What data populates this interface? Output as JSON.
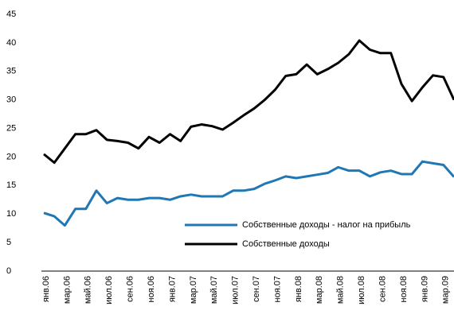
{
  "chart_data": {
    "type": "line",
    "categories": [
      "янв.06",
      null,
      "мар.06",
      null,
      "май.06",
      null,
      "июл.06",
      null,
      "сен.06",
      null,
      "ноя.06",
      null,
      "янв.07",
      null,
      "мар.07",
      null,
      "май.07",
      null,
      "июл.07",
      null,
      "сен.07",
      null,
      "ноя.07",
      null,
      "янв.08",
      null,
      "мар.08",
      null,
      "май.08",
      null,
      "июл.08",
      null,
      "сен.08",
      null,
      "ноя.08",
      null,
      "янв.09",
      null,
      "мар.09",
      null
    ],
    "series": [
      {
        "name": "Собственные доходы - налог на прибыль",
        "color": "#1f77b4",
        "values": [
          10.2,
          9.6,
          8,
          10.9,
          10.9,
          14.1,
          11.9,
          12.8,
          12.5,
          12.5,
          12.8,
          12.8,
          12.5,
          13.1,
          13.4,
          13.1,
          13.1,
          13.1,
          14.1,
          14.1,
          14.4,
          15.3,
          15.9,
          16.6,
          16.3,
          16.6,
          16.9,
          17.2,
          18.2,
          17.6,
          17.6,
          16.6,
          17.3,
          17.6,
          17,
          17,
          19.2,
          18.9,
          18.6,
          16.5
        ]
      },
      {
        "name": "Собственные доходы",
        "color": "#000000",
        "values": [
          20.5,
          19,
          21.5,
          24,
          24,
          24.7,
          23,
          22.8,
          22.5,
          21.5,
          23.5,
          22.5,
          24,
          22.8,
          25.3,
          25.7,
          25.4,
          24.8,
          26,
          27.3,
          28.5,
          30,
          31.8,
          34.2,
          34.5,
          36.2,
          34.5,
          35.4,
          36.5,
          38,
          40.4,
          38.8,
          38.2,
          38.2,
          32.8,
          29.8,
          32.2,
          34.3,
          34,
          30
        ]
      }
    ],
    "ylim": [
      0,
      45
    ],
    "yticks": [
      0,
      5,
      10,
      15,
      20,
      25,
      30,
      35,
      40,
      45
    ],
    "grid": false
  }
}
